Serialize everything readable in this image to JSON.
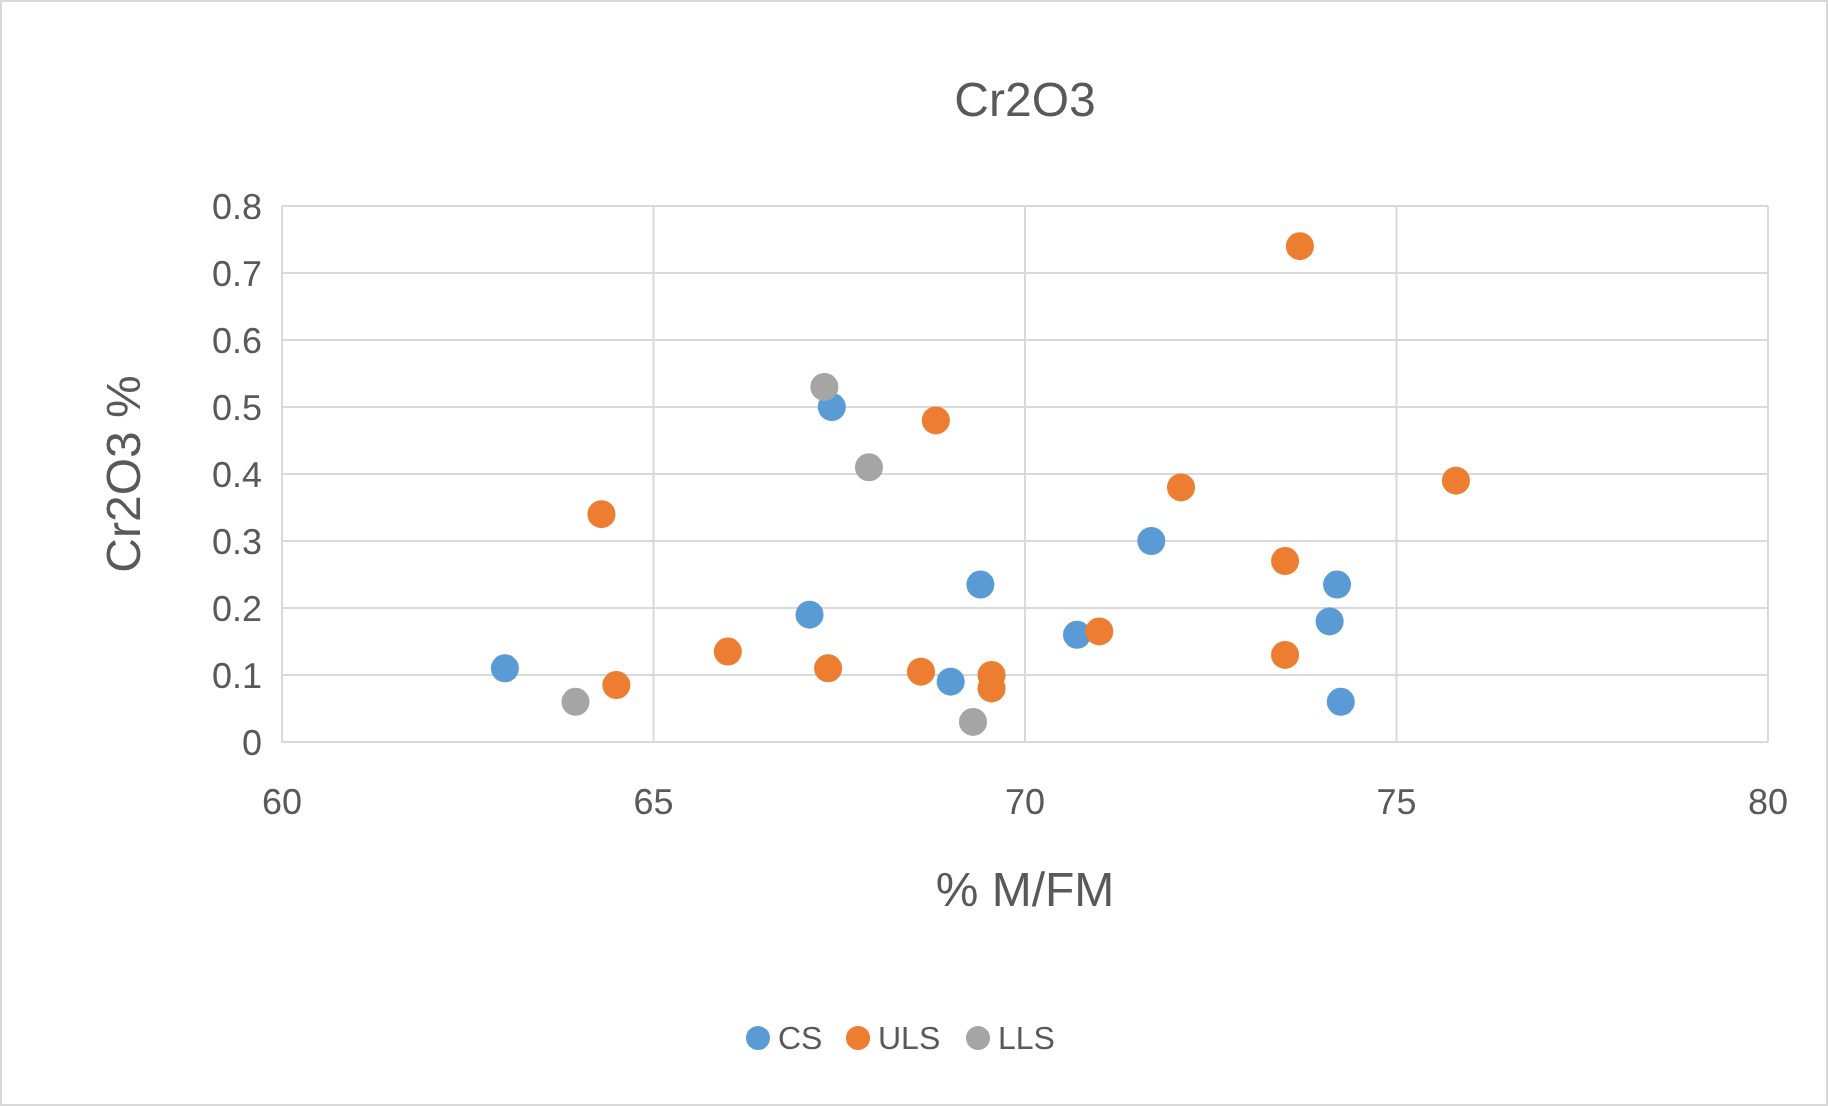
{
  "chart_data": {
    "type": "scatter",
    "title": "Cr2O3",
    "xlabel": "% M/FM",
    "ylabel": "Cr2O3 %",
    "xlim": [
      60,
      80
    ],
    "xticks": [
      60,
      65,
      70,
      75,
      80
    ],
    "ylim": [
      0,
      0.8
    ],
    "yticks": [
      0,
      0.1,
      0.2,
      0.3,
      0.4,
      0.5,
      0.6,
      0.7,
      0.8
    ],
    "grid": true,
    "legend": "bottom",
    "marker": "circle",
    "series": [
      {
        "name": "CS",
        "color": "#5b9bd5",
        "x": [
          63.0,
          67.4,
          67.1,
          69.4,
          69.0,
          70.7,
          71.7,
          74.2,
          74.1,
          74.25
        ],
        "values": [
          0.11,
          0.5,
          0.19,
          0.235,
          0.09,
          0.16,
          0.3,
          0.235,
          0.18,
          0.06
        ]
      },
      {
        "name": "ULS",
        "color": "#ed7d31",
        "x": [
          64.3,
          64.5,
          66.0,
          67.35,
          68.8,
          68.6,
          69.55,
          69.55,
          71.0,
          72.1,
          73.7,
          73.5,
          73.5,
          75.8
        ],
        "values": [
          0.34,
          0.085,
          0.135,
          0.11,
          0.48,
          0.105,
          0.1,
          0.08,
          0.165,
          0.38,
          0.74,
          0.27,
          0.13,
          0.39
        ]
      },
      {
        "name": "LLS",
        "color": "#a5a5a5",
        "x": [
          63.95,
          67.3,
          67.9,
          69.3
        ],
        "values": [
          0.06,
          0.53,
          0.41,
          0.03
        ]
      }
    ]
  }
}
